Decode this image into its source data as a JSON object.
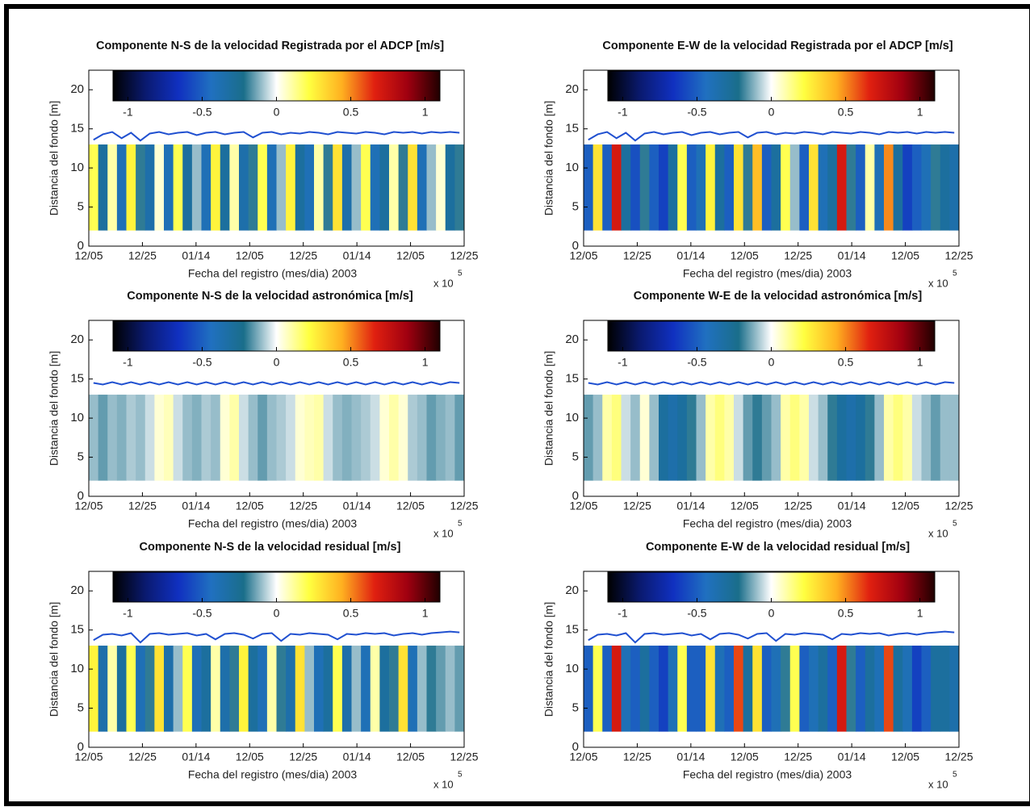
{
  "chart_data": [
    {
      "type": "heatmap",
      "title": "Componente N-S de la velocidad Registrada por el ADCP [m/s]",
      "x_label": "Fecha del registro (mes/dia) 2003",
      "y_label": "Distancia del fondo [m]",
      "x_multiplier": "x 10",
      "x_multiplier_exp": "5",
      "xlim": [
        0,
        7
      ],
      "xticks": [
        {
          "value": 0,
          "label": "12/05"
        },
        {
          "value": 1,
          "label": "12/25"
        },
        {
          "value": 2,
          "label": "01/14"
        },
        {
          "value": 3,
          "label": "12/05"
        },
        {
          "value": 4,
          "label": "12/25"
        },
        {
          "value": 5,
          "label": "01/14"
        },
        {
          "value": 6,
          "label": "12/05"
        },
        {
          "value": 7,
          "label": "12/25"
        }
      ],
      "ylim": [
        0,
        22.5
      ],
      "yticks": [
        0,
        5,
        10,
        15,
        20
      ],
      "depth_range": [
        2,
        13
      ],
      "values": [
        0.2,
        -0.3,
        0.1,
        -0.4,
        0.25,
        -0.2,
        -0.35,
        0.05,
        -0.4,
        0.2,
        -0.3,
        -0.1,
        -0.4,
        0.25,
        -0.3,
        0.1,
        -0.35,
        -0.2,
        0.2,
        -0.4,
        -0.1,
        0.25,
        -0.3,
        -0.4,
        0.1,
        -0.2,
        0.3,
        -0.35,
        -0.1,
        0.2,
        -0.4,
        -0.3,
        0.1,
        -0.2,
        0.3,
        -0.4,
        -0.1,
        0.05,
        -0.3,
        -0.2
      ],
      "surface": {
        "color": "#2050d0",
        "values": [
          13.6,
          14.3,
          14.6,
          13.8,
          14.5,
          13.5,
          14.4,
          14.6,
          14.3,
          14.5,
          14.6,
          14.2,
          14.5,
          14.6,
          14.3,
          14.5,
          14.6,
          13.9,
          14.5,
          14.6,
          14.3,
          14.5,
          14.4,
          14.6,
          14.5,
          14.3,
          14.6,
          14.5,
          14.4,
          14.6,
          14.5,
          14.3,
          14.6,
          14.5,
          14.6,
          14.4,
          14.6,
          14.5,
          14.6,
          14.5
        ]
      },
      "colorbar": {
        "lim": [
          -1.1,
          1.1
        ],
        "ticks": [
          -1,
          -0.5,
          0,
          0.5,
          1
        ],
        "colors": [
          "#000000",
          "#0a1a70",
          "#1030c0",
          "#2070c0",
          "#1a6e8a",
          "#ffffff",
          "#ffff40",
          "#ffb020",
          "#e02010",
          "#a00010",
          "#200000"
        ]
      }
    },
    {
      "type": "heatmap",
      "title": "Componente E-W de la velocidad Registrada por el ADCP [m/s]",
      "x_label": "Fecha del registro (mes/dia) 2003",
      "y_label": "Distancia del fondo [m]",
      "x_multiplier": "x 10",
      "x_multiplier_exp": "5",
      "xlim": [
        0,
        7
      ],
      "xticks": [
        {
          "value": 0,
          "label": "12/05"
        },
        {
          "value": 1,
          "label": "12/25"
        },
        {
          "value": 2,
          "label": "01/14"
        },
        {
          "value": 3,
          "label": "12/05"
        },
        {
          "value": 4,
          "label": "12/25"
        },
        {
          "value": 5,
          "label": "01/14"
        },
        {
          "value": 6,
          "label": "12/05"
        },
        {
          "value": 7,
          "label": "12/25"
        }
      ],
      "ylim": [
        0,
        22.5
      ],
      "yticks": [
        0,
        5,
        10,
        15,
        20
      ],
      "depth_range": [
        2,
        13
      ],
      "values": [
        -0.5,
        0.3,
        -0.5,
        0.7,
        -0.3,
        -0.55,
        -0.2,
        -0.5,
        -0.6,
        -0.3,
        0.2,
        -0.5,
        -0.4,
        0.25,
        -0.3,
        -0.5,
        0.3,
        -0.2,
        0.4,
        -0.5,
        -0.3,
        0.2,
        -0.1,
        -0.5,
        0.3,
        -0.4,
        -0.3,
        0.7,
        -0.2,
        -0.5,
        0.1,
        -0.4,
        0.5,
        -0.3,
        -0.6,
        -0.5,
        -0.4,
        -0.2,
        -0.3,
        -0.35
      ],
      "surface": {
        "color": "#2050d0",
        "values": [
          13.6,
          14.3,
          14.6,
          13.8,
          14.5,
          13.5,
          14.4,
          14.6,
          14.3,
          14.5,
          14.6,
          14.2,
          14.5,
          14.6,
          14.3,
          14.5,
          14.6,
          13.9,
          14.5,
          14.6,
          14.3,
          14.5,
          14.4,
          14.6,
          14.5,
          14.3,
          14.6,
          14.5,
          14.4,
          14.6,
          14.5,
          14.3,
          14.6,
          14.5,
          14.6,
          14.4,
          14.6,
          14.5,
          14.6,
          14.5
        ]
      },
      "colorbar": {
        "lim": [
          -1.1,
          1.1
        ],
        "ticks": [
          -1,
          -0.5,
          0,
          0.5,
          1
        ],
        "colors": [
          "#000000",
          "#0a1a70",
          "#1030c0",
          "#2070c0",
          "#1a6e8a",
          "#ffffff",
          "#ffff40",
          "#ffb020",
          "#e02010",
          "#a00010",
          "#200000"
        ]
      }
    },
    {
      "type": "heatmap",
      "title": "Componente N-S de la velocidad astronómica [m/s]",
      "x_label": "Fecha del registro (mes/dia) 2003",
      "y_label": "Distancia del fondo [m]",
      "x_multiplier": "x 10",
      "x_multiplier_exp": "5",
      "xlim": [
        0,
        7
      ],
      "xticks": [
        {
          "value": 0,
          "label": "12/05"
        },
        {
          "value": 1,
          "label": "12/25"
        },
        {
          "value": 2,
          "label": "01/14"
        },
        {
          "value": 3,
          "label": "12/05"
        },
        {
          "value": 4,
          "label": "12/25"
        },
        {
          "value": 5,
          "label": "01/14"
        },
        {
          "value": 6,
          "label": "12/05"
        },
        {
          "value": 7,
          "label": "12/25"
        }
      ],
      "ylim": [
        0,
        22.5
      ],
      "yticks": [
        0,
        5,
        10,
        15,
        20
      ],
      "depth_range": [
        2,
        13
      ],
      "values": [
        -0.1,
        -0.15,
        -0.1,
        -0.12,
        -0.08,
        -0.1,
        -0.05,
        0.05,
        0.08,
        -0.05,
        -0.1,
        -0.12,
        -0.08,
        -0.1,
        0.05,
        0.1,
        -0.05,
        -0.1,
        -0.15,
        -0.1,
        -0.08,
        -0.05,
        0.05,
        0.08,
        0.1,
        -0.05,
        -0.1,
        -0.12,
        -0.1,
        -0.08,
        -0.05,
        0.05,
        0.1,
        0.05,
        -0.08,
        -0.1,
        -0.15,
        -0.12,
        -0.1,
        -0.15
      ],
      "surface": {
        "color": "#2050d0",
        "values": [
          14.5,
          14.3,
          14.6,
          14.3,
          14.6,
          14.3,
          14.6,
          14.3,
          14.6,
          14.3,
          14.6,
          14.3,
          14.6,
          14.3,
          14.6,
          14.3,
          14.6,
          14.3,
          14.6,
          14.3,
          14.6,
          14.3,
          14.6,
          14.3,
          14.6,
          14.3,
          14.6,
          14.3,
          14.6,
          14.3,
          14.6,
          14.3,
          14.6,
          14.3,
          14.6,
          14.3,
          14.6,
          14.3,
          14.6,
          14.5
        ]
      },
      "colorbar": {
        "lim": [
          -1.1,
          1.1
        ],
        "ticks": [
          -1,
          -0.5,
          0,
          0.5,
          1
        ],
        "colors": [
          "#000000",
          "#0a1a70",
          "#1030c0",
          "#2070c0",
          "#1a6e8a",
          "#ffffff",
          "#ffff40",
          "#ffb020",
          "#e02010",
          "#a00010",
          "#200000"
        ]
      }
    },
    {
      "type": "heatmap",
      "title": "Componente W-E de la velocidad astronómica [m/s]",
      "x_label": "Fecha del registro (mes/dia) 2003",
      "y_label": "Distancia del fondo [m]",
      "x_multiplier": "x 10",
      "x_multiplier_exp": "5",
      "xlim": [
        0,
        7
      ],
      "xticks": [
        {
          "value": 0,
          "label": "12/05"
        },
        {
          "value": 1,
          "label": "12/25"
        },
        {
          "value": 2,
          "label": "01/14"
        },
        {
          "value": 3,
          "label": "12/05"
        },
        {
          "value": 4,
          "label": "12/25"
        },
        {
          "value": 5,
          "label": "01/14"
        },
        {
          "value": 6,
          "label": "12/05"
        },
        {
          "value": 7,
          "label": "12/25"
        }
      ],
      "ylim": [
        0,
        22.5
      ],
      "yticks": [
        0,
        5,
        10,
        15,
        20
      ],
      "depth_range": [
        2,
        13
      ],
      "values": [
        -0.15,
        -0.1,
        0.1,
        0.15,
        -0.05,
        -0.1,
        0.05,
        -0.1,
        -0.3,
        -0.35,
        -0.3,
        -0.2,
        -0.1,
        0.1,
        0.15,
        0.1,
        -0.05,
        -0.15,
        -0.2,
        -0.15,
        -0.1,
        0.1,
        0.15,
        0.1,
        -0.05,
        -0.1,
        -0.2,
        -0.3,
        -0.35,
        -0.3,
        -0.2,
        -0.1,
        0.1,
        0.15,
        0.1,
        -0.05,
        -0.1,
        -0.15,
        -0.1,
        -0.1
      ],
      "surface": {
        "color": "#2050d0",
        "values": [
          14.5,
          14.3,
          14.6,
          14.3,
          14.6,
          14.3,
          14.6,
          14.3,
          14.6,
          14.3,
          14.6,
          14.3,
          14.6,
          14.3,
          14.6,
          14.3,
          14.6,
          14.3,
          14.6,
          14.3,
          14.6,
          14.3,
          14.6,
          14.3,
          14.6,
          14.3,
          14.6,
          14.3,
          14.6,
          14.3,
          14.6,
          14.3,
          14.6,
          14.3,
          14.6,
          14.3,
          14.6,
          14.3,
          14.6,
          14.5
        ]
      },
      "colorbar": {
        "lim": [
          -1.1,
          1.1
        ],
        "ticks": [
          -1,
          -0.5,
          0,
          0.5,
          1
        ],
        "colors": [
          "#000000",
          "#0a1a70",
          "#1030c0",
          "#2070c0",
          "#1a6e8a",
          "#ffffff",
          "#ffff40",
          "#ffb020",
          "#e02010",
          "#a00010",
          "#200000"
        ]
      }
    },
    {
      "type": "heatmap",
      "title": "Componente N-S de la velocidad residual [m/s]",
      "x_label": "Fecha del registro (mes/dia) 2003",
      "y_label": "Distancia del fondo [m]",
      "x_multiplier": "x 10",
      "x_multiplier_exp": "5",
      "xlim": [
        0,
        7
      ],
      "xticks": [
        {
          "value": 0,
          "label": "12/05"
        },
        {
          "value": 1,
          "label": "12/25"
        },
        {
          "value": 2,
          "label": "01/14"
        },
        {
          "value": 3,
          "label": "12/05"
        },
        {
          "value": 4,
          "label": "12/25"
        },
        {
          "value": 5,
          "label": "01/14"
        },
        {
          "value": 6,
          "label": "12/05"
        },
        {
          "value": 7,
          "label": "12/25"
        }
      ],
      "ylim": [
        0,
        22.5
      ],
      "yticks": [
        0,
        5,
        10,
        15,
        20
      ],
      "depth_range": [
        2,
        13
      ],
      "values": [
        0.25,
        -0.35,
        0.1,
        -0.3,
        0.2,
        -0.4,
        -0.2,
        0.3,
        -0.35,
        -0.1,
        0.2,
        -0.4,
        -0.3,
        0.1,
        -0.35,
        -0.2,
        0.25,
        -0.3,
        -0.4,
        0.1,
        -0.2,
        -0.35,
        0.3,
        -0.1,
        -0.4,
        -0.3,
        0.2,
        -0.35,
        -0.1,
        -0.4,
        0.1,
        -0.3,
        -0.2,
        0.3,
        -0.4,
        -0.1,
        -0.2,
        -0.15,
        -0.1,
        -0.15
      ],
      "surface": {
        "color": "#2050d0",
        "values": [
          13.7,
          14.4,
          14.5,
          14.3,
          14.6,
          13.4,
          14.5,
          14.6,
          14.4,
          14.5,
          14.6,
          14.3,
          14.5,
          13.8,
          14.5,
          14.6,
          14.4,
          13.9,
          14.5,
          14.6,
          13.6,
          14.5,
          14.4,
          14.6,
          14.5,
          14.4,
          13.8,
          14.5,
          14.4,
          14.6,
          14.5,
          14.6,
          14.3,
          14.5,
          14.6,
          14.4,
          14.6,
          14.7,
          14.8,
          14.7
        ]
      },
      "colorbar": {
        "lim": [
          -1.1,
          1.1
        ],
        "ticks": [
          -1,
          -0.5,
          0,
          0.5,
          1
        ],
        "colors": [
          "#000000",
          "#0a1a70",
          "#1030c0",
          "#2070c0",
          "#1a6e8a",
          "#ffffff",
          "#ffff40",
          "#ffb020",
          "#e02010",
          "#a00010",
          "#200000"
        ]
      }
    },
    {
      "type": "heatmap",
      "title": "Componente E-W de la velocidad residual [m/s]",
      "x_label": "Fecha del registro (mes/dia) 2003",
      "y_label": "Distancia del fondo [m]",
      "x_multiplier": "x 10",
      "x_multiplier_exp": "5",
      "xlim": [
        0,
        7
      ],
      "xticks": [
        {
          "value": 0,
          "label": "12/05"
        },
        {
          "value": 1,
          "label": "12/25"
        },
        {
          "value": 2,
          "label": "01/14"
        },
        {
          "value": 3,
          "label": "12/05"
        },
        {
          "value": 4,
          "label": "12/25"
        },
        {
          "value": 5,
          "label": "01/14"
        },
        {
          "value": 6,
          "label": "12/05"
        },
        {
          "value": 7,
          "label": "12/25"
        }
      ],
      "ylim": [
        0,
        22.5
      ],
      "yticks": [
        0,
        5,
        10,
        15,
        20
      ],
      "depth_range": [
        2,
        13
      ],
      "values": [
        -0.5,
        0.2,
        -0.5,
        0.7,
        -0.4,
        -0.5,
        -0.3,
        -0.5,
        -0.6,
        -0.4,
        0.2,
        -0.5,
        -0.5,
        0.3,
        -0.4,
        -0.5,
        0.6,
        -0.3,
        0.3,
        -0.5,
        -0.4,
        -0.2,
        0.2,
        -0.5,
        -0.4,
        -0.3,
        -0.5,
        0.7,
        -0.2,
        -0.5,
        -0.3,
        -0.4,
        0.6,
        -0.3,
        -0.4,
        -0.6,
        -0.5,
        -0.3,
        -0.3,
        -0.35
      ],
      "surface": {
        "color": "#2050d0",
        "values": [
          13.7,
          14.4,
          14.5,
          14.3,
          14.6,
          13.4,
          14.5,
          14.6,
          14.4,
          14.5,
          14.6,
          14.3,
          14.5,
          13.8,
          14.5,
          14.6,
          14.4,
          13.9,
          14.5,
          14.6,
          13.6,
          14.5,
          14.4,
          14.6,
          14.5,
          14.4,
          13.8,
          14.5,
          14.4,
          14.6,
          14.5,
          14.6,
          14.3,
          14.5,
          14.6,
          14.4,
          14.6,
          14.7,
          14.8,
          14.7
        ]
      },
      "colorbar": {
        "lim": [
          -1.1,
          1.1
        ],
        "ticks": [
          -1,
          -0.5,
          0,
          0.5,
          1
        ],
        "colors": [
          "#000000",
          "#0a1a70",
          "#1030c0",
          "#2070c0",
          "#1a6e8a",
          "#ffffff",
          "#ffff40",
          "#ffb020",
          "#e02010",
          "#a00010",
          "#200000"
        ]
      }
    }
  ]
}
